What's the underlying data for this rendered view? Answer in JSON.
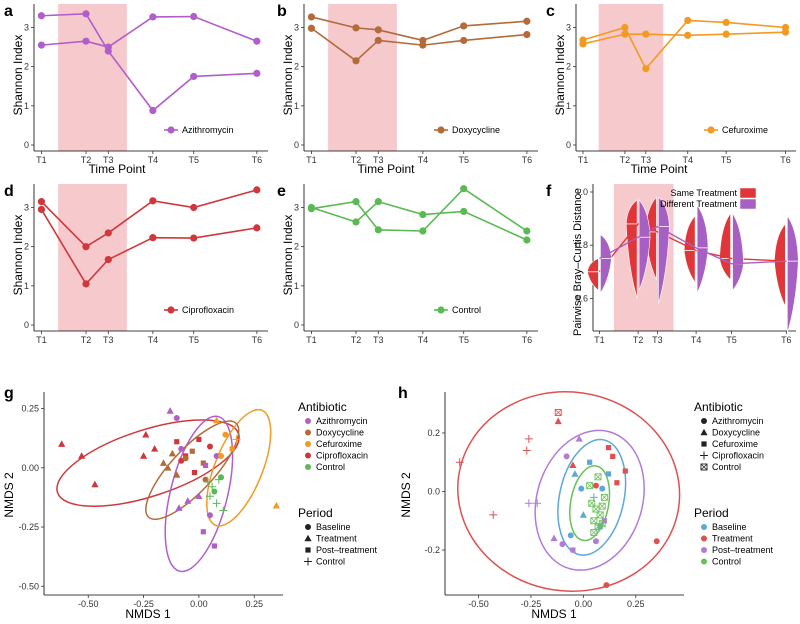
{
  "figure": {
    "panel_labels": [
      "a",
      "b",
      "c",
      "d",
      "e",
      "f",
      "g",
      "h"
    ],
    "timepoint_xlabel": "Time Point",
    "shannon_ylabel": "Shannon Index",
    "braycurtis_ylabel": "Pairwise Bray–Curtis Distance",
    "nmds_xlabel": "NMDS 1",
    "nmds_ylabel": "NMDS 2",
    "antibiotic_legend_title": "Antibiotic",
    "period_legend_title": "Period",
    "antibiotics": [
      "Azithromycin",
      "Doxycycline",
      "Cefuroxime",
      "Ciprofloxacin",
      "Control"
    ],
    "periods_g": [
      "Baseline",
      "Treatment",
      "Post–treatment",
      "Control"
    ],
    "periods_h": [
      "Baseline",
      "Treatment",
      "Post–treatment",
      "Control"
    ],
    "violin_legend": [
      "Same Treatment",
      "Different Treatment"
    ]
  },
  "colors": {
    "Azithromycin": "#b05fc9",
    "Doxycycline": "#b36b3b",
    "Cefuroxime": "#f29a22",
    "Ciprofloxacin": "#d0373b",
    "Control": "#5ab953",
    "treatment_shade": "#f6c9cc",
    "same_treatment": "#e0363a",
    "different_treatment": "#a65fc2",
    "baseline_h": "#5aa9d6",
    "treatment_h": "#e05050",
    "posttreatment_h": "#b27bd9",
    "control_h": "#6bbf5a"
  },
  "chart_data": [
    {
      "panel": "a",
      "type": "line",
      "legend": "Azithromycin",
      "categories": [
        "T1",
        "T2",
        "T3",
        "T4",
        "T5",
        "T6"
      ],
      "x": [
        1,
        2.2,
        2.8,
        4,
        5.1,
        6.8
      ],
      "xlim": [
        0.8,
        7.1
      ],
      "ylim": [
        0,
        3.6
      ],
      "yticks": [
        0,
        1,
        2,
        3
      ],
      "shaded_region": [
        1.45,
        3.3
      ],
      "series": [
        {
          "name": "line1",
          "values": [
            3.3,
            3.35,
            2.4,
            0.88,
            1.75,
            1.83
          ]
        },
        {
          "name": "line2",
          "values": [
            2.55,
            2.65,
            2.5,
            3.27,
            3.28,
            2.65
          ]
        }
      ]
    },
    {
      "panel": "b",
      "type": "line",
      "legend": "Doxycycline",
      "categories": [
        "T1",
        "T2",
        "T3",
        "T4",
        "T5",
        "T6"
      ],
      "x": [
        1,
        2.2,
        2.8,
        4,
        5.1,
        6.8
      ],
      "xlim": [
        0.8,
        7.1
      ],
      "ylim": [
        0,
        3.6
      ],
      "yticks": [
        0,
        1,
        2,
        3
      ],
      "shaded_region": [
        1.45,
        3.3
      ],
      "series": [
        {
          "name": "line1",
          "values": [
            3.27,
            2.99,
            2.94,
            2.67,
            3.04,
            3.16
          ]
        },
        {
          "name": "line2",
          "values": [
            2.98,
            2.15,
            2.67,
            2.55,
            2.67,
            2.82
          ]
        }
      ]
    },
    {
      "panel": "c",
      "type": "line",
      "legend": "Cefuroxime",
      "categories": [
        "T1",
        "T2",
        "T3",
        "T4",
        "T5",
        "T6"
      ],
      "x": [
        1,
        2.2,
        2.8,
        4,
        5.1,
        6.8
      ],
      "xlim": [
        0.8,
        7.1
      ],
      "ylim": [
        0,
        3.6
      ],
      "yticks": [
        0,
        1,
        2,
        3
      ],
      "shaded_region": [
        1.45,
        3.3
      ],
      "series": [
        {
          "name": "line1",
          "values": [
            2.68,
            3.0,
            1.95,
            3.18,
            3.13,
            3.0
          ]
        },
        {
          "name": "line2",
          "values": [
            2.58,
            2.83,
            2.83,
            2.8,
            2.83,
            2.88
          ]
        }
      ]
    },
    {
      "panel": "d",
      "type": "line",
      "legend": "Ciprofloxacin",
      "categories": [
        "T1",
        "T2",
        "T3",
        "T4",
        "T5",
        "T6"
      ],
      "x": [
        1,
        2.2,
        2.8,
        4,
        5.1,
        6.8
      ],
      "xlim": [
        0.8,
        7.1
      ],
      "ylim": [
        0,
        3.6
      ],
      "yticks": [
        0,
        1,
        2,
        3
      ],
      "shaded_region": [
        1.45,
        3.3
      ],
      "series": [
        {
          "name": "line1",
          "values": [
            3.15,
            2.0,
            2.35,
            3.17,
            3.0,
            3.45
          ]
        },
        {
          "name": "line2",
          "values": [
            2.95,
            1.05,
            1.67,
            2.23,
            2.22,
            2.48
          ]
        }
      ]
    },
    {
      "panel": "e",
      "type": "line",
      "legend": "Control",
      "categories": [
        "T1",
        "T2",
        "T3",
        "T4",
        "T5",
        "T6"
      ],
      "x": [
        1,
        2.2,
        2.8,
        4,
        5.1,
        6.8
      ],
      "xlim": [
        0.8,
        7.1
      ],
      "ylim": [
        0,
        3.6
      ],
      "yticks": [
        0,
        1,
        2,
        3
      ],
      "shaded_region": null,
      "series": [
        {
          "name": "line1",
          "values": [
            2.97,
            3.15,
            2.43,
            2.4,
            3.48,
            2.4
          ]
        },
        {
          "name": "line2",
          "values": [
            3.0,
            2.63,
            3.15,
            2.82,
            2.9,
            2.17
          ]
        }
      ]
    },
    {
      "panel": "f",
      "type": "violin",
      "categories": [
        "T1",
        "T2",
        "T3",
        "T4",
        "T5",
        "T6"
      ],
      "x": [
        1,
        2.2,
        2.8,
        4,
        5.1,
        6.8
      ],
      "xlim": [
        0.8,
        7.1
      ],
      "ylim": [
        0.5,
        1.03
      ],
      "yticks": [
        0.6,
        0.8,
        1.0
      ],
      "shaded_region": [
        1.45,
        3.3
      ],
      "series": [
        {
          "name": "Same Treatment",
          "medians": [
            0.7,
            0.88,
            0.85,
            0.78,
            0.75,
            0.74
          ],
          "lo": [
            0.63,
            0.6,
            0.67,
            0.66,
            0.67,
            0.57
          ],
          "hi": [
            0.75,
            0.97,
            0.98,
            0.91,
            0.92,
            0.88
          ]
        },
        {
          "name": "Different Treatment",
          "medians": [
            0.75,
            0.83,
            0.87,
            0.79,
            0.73,
            0.74
          ],
          "lo": [
            0.62,
            0.63,
            0.58,
            0.62,
            0.63,
            0.47
          ],
          "hi": [
            0.84,
            0.97,
            0.98,
            0.95,
            0.92,
            0.91
          ]
        }
      ]
    },
    {
      "panel": "g",
      "type": "scatter",
      "xlim": [
        -0.7,
        0.38
      ],
      "ylim": [
        -0.52,
        0.32
      ],
      "xticks": [
        -0.5,
        -0.25,
        0.0,
        0.25
      ],
      "yticks": [
        -0.5,
        -0.25,
        0.0,
        0.25
      ],
      "xtick_labels": [
        "-0.50",
        "-0.25",
        "0.00",
        "0.25"
      ],
      "ytick_labels": [
        "-0.50",
        "-0.25",
        "0.00",
        "0.25"
      ],
      "ellipses": [
        {
          "group": "Ciprofloxacin",
          "cx": -0.23,
          "cy": 0.02,
          "rx": 0.43,
          "ry": 0.14,
          "angle": 18
        },
        {
          "group": "Azithromycin",
          "cx": 0.0,
          "cy": -0.11,
          "rx": 0.36,
          "ry": 0.12,
          "angle": 76
        },
        {
          "group": "Cefuroxime",
          "cx": 0.18,
          "cy": 0.0,
          "rx": 0.28,
          "ry": 0.1,
          "angle": 68
        },
        {
          "group": "Doxycycline",
          "cx": -0.03,
          "cy": -0.01,
          "rx": 0.29,
          "ry": 0.09,
          "angle": 47
        }
      ],
      "points": [
        [
          -0.62,
          0.1,
          "Ciprofloxacin",
          "t"
        ],
        [
          -0.53,
          0.05,
          "Ciprofloxacin",
          "t"
        ],
        [
          -0.47,
          -0.07,
          "Ciprofloxacin",
          "t"
        ],
        [
          -0.25,
          0.05,
          "Ciprofloxacin",
          "t"
        ],
        [
          -0.24,
          0.14,
          "Ciprofloxacin",
          "t"
        ],
        [
          -0.2,
          0.08,
          "Ciprofloxacin",
          "t"
        ],
        [
          -0.1,
          0.11,
          "Ciprofloxacin",
          "s"
        ],
        [
          -0.06,
          0.05,
          "Ciprofloxacin",
          "s"
        ],
        [
          0.0,
          0.12,
          "Ciprofloxacin",
          "s"
        ],
        [
          -0.02,
          -0.02,
          "Ciprofloxacin",
          "s"
        ],
        [
          0.05,
          0.09,
          "Ciprofloxacin",
          "c"
        ],
        [
          -0.08,
          0.03,
          "Ciprofloxacin",
          "c"
        ],
        [
          -0.16,
          0.02,
          "Doxycycline",
          "t"
        ],
        [
          -0.14,
          0.0,
          "Doxycycline",
          "t"
        ],
        [
          -0.1,
          -0.03,
          "Doxycycline",
          "t"
        ],
        [
          -0.06,
          0.04,
          "Doxycycline",
          "c"
        ],
        [
          -0.03,
          0.07,
          "Doxycycline",
          "s"
        ],
        [
          0.02,
          0.02,
          "Doxycycline",
          "s"
        ],
        [
          0.03,
          -0.05,
          "Doxycycline",
          "c"
        ],
        [
          -0.12,
          0.06,
          "Doxycycline",
          "t"
        ],
        [
          -0.13,
          0.24,
          "Azithromycin",
          "t"
        ],
        [
          -0.1,
          0.21,
          "Azithromycin",
          "c"
        ],
        [
          -0.08,
          0.08,
          "Azithromycin",
          "c"
        ],
        [
          -0.05,
          -0.14,
          "Azithromycin",
          "t"
        ],
        [
          0.0,
          -0.12,
          "Azithromycin",
          "t"
        ],
        [
          -0.09,
          -0.17,
          "Azithromycin",
          "t"
        ],
        [
          0.02,
          -0.27,
          "Azithromycin",
          "s"
        ],
        [
          0.07,
          -0.33,
          "Azithromycin",
          "s"
        ],
        [
          0.05,
          -0.2,
          "Azithromycin",
          "c"
        ],
        [
          0.08,
          0.05,
          "Azithromycin",
          "c"
        ],
        [
          0.03,
          0.01,
          "Azithromycin",
          "s"
        ],
        [
          0.08,
          0.2,
          "Cefuroxime",
          "t"
        ],
        [
          0.12,
          0.14,
          "Cefuroxime",
          "c"
        ],
        [
          0.15,
          0.08,
          "Cefuroxime",
          "s"
        ],
        [
          0.1,
          0.05,
          "Cefuroxime",
          "c"
        ],
        [
          0.17,
          0.12,
          "Cefuroxime",
          "p"
        ],
        [
          0.35,
          -0.16,
          "Cefuroxime",
          "t"
        ],
        [
          0.09,
          -0.05,
          "Control",
          "p"
        ],
        [
          0.06,
          -0.08,
          "Control",
          "p"
        ],
        [
          0.05,
          -0.12,
          "Control",
          "p"
        ],
        [
          0.08,
          -0.15,
          "Control",
          "p"
        ],
        [
          0.11,
          -0.18,
          "Control",
          "p"
        ],
        [
          0.07,
          -0.1,
          "Control",
          "c"
        ],
        [
          0.1,
          -0.04,
          "Control",
          "c"
        ],
        [
          0.04,
          -0.06,
          "Control",
          "p"
        ]
      ]
    },
    {
      "panel": "h",
      "type": "scatter",
      "xlim": [
        -0.66,
        0.48
      ],
      "ylim": [
        -0.34,
        0.34
      ],
      "xticks": [
        -0.5,
        -0.25,
        0.0,
        0.25
      ],
      "yticks": [
        -0.2,
        0.0,
        0.2
      ],
      "xtick_labels": [
        "-0.50",
        "-0.25",
        "0.00",
        "0.25"
      ],
      "ytick_labels": [
        "-0.2",
        "0.0",
        "0.2"
      ],
      "ellipses": [
        {
          "group": "Treatment",
          "cx": -0.07,
          "cy": 0.0,
          "rx": 0.53,
          "ry": 0.34,
          "angle": -8
        },
        {
          "group": "Post–treatment",
          "cx": 0.03,
          "cy": -0.03,
          "rx": 0.34,
          "ry": 0.18,
          "angle": 73
        },
        {
          "group": "Baseline",
          "cx": 0.04,
          "cy": -0.02,
          "rx": 0.28,
          "ry": 0.11,
          "angle": 78
        },
        {
          "group": "Control",
          "cx": 0.03,
          "cy": -0.04,
          "rx": 0.18,
          "ry": 0.065,
          "angle": 80
        }
      ],
      "points": [
        [
          -0.59,
          0.1,
          "Treatment",
          "p"
        ],
        [
          -0.43,
          -0.08,
          "Treatment",
          "p"
        ],
        [
          -0.26,
          0.18,
          "Treatment",
          "p"
        ],
        [
          -0.27,
          0.14,
          "Treatment",
          "p"
        ],
        [
          -0.12,
          0.24,
          "Treatment",
          "t"
        ],
        [
          -0.12,
          0.27,
          "Treatment",
          "x"
        ],
        [
          0.12,
          0.15,
          "Treatment",
          "s"
        ],
        [
          0.14,
          0.12,
          "Treatment",
          "s"
        ],
        [
          0.2,
          0.07,
          "Treatment",
          "s"
        ],
        [
          -0.05,
          0.09,
          "Treatment",
          "t"
        ],
        [
          0.35,
          -0.17,
          "Treatment",
          "c"
        ],
        [
          0.11,
          -0.32,
          "Treatment",
          "c"
        ],
        [
          0.06,
          0.02,
          "Treatment",
          "c"
        ],
        [
          0.16,
          0.03,
          "Treatment",
          "s"
        ],
        [
          -0.04,
          0.06,
          "Baseline",
          "t"
        ],
        [
          -0.01,
          0.01,
          "Baseline",
          "c"
        ],
        [
          0.03,
          0.1,
          "Baseline",
          "s"
        ],
        [
          0.05,
          -0.02,
          "Baseline",
          "p"
        ],
        [
          0.09,
          0.01,
          "Baseline",
          "c"
        ],
        [
          0.0,
          -0.08,
          "Baseline",
          "t"
        ],
        [
          0.08,
          -0.12,
          "Baseline",
          "s"
        ],
        [
          -0.06,
          -0.15,
          "Baseline",
          "c"
        ],
        [
          0.12,
          0.06,
          "Baseline",
          "s"
        ],
        [
          -0.26,
          -0.04,
          "Post–treatment",
          "p"
        ],
        [
          -0.22,
          -0.04,
          "Post–treatment",
          "p"
        ],
        [
          -0.14,
          -0.16,
          "Post–treatment",
          "t"
        ],
        [
          -0.1,
          -0.18,
          "Post–treatment",
          "c"
        ],
        [
          -0.08,
          0.12,
          "Post–treatment",
          "c"
        ],
        [
          -0.02,
          0.18,
          "Post–treatment",
          "t"
        ],
        [
          0.1,
          -0.1,
          "Post–treatment",
          "s"
        ],
        [
          -0.05,
          -0.2,
          "Post–treatment",
          "s"
        ],
        [
          0.06,
          -0.17,
          "Post–treatment",
          "c"
        ],
        [
          0.04,
          -0.04,
          "Control",
          "x"
        ],
        [
          0.06,
          -0.06,
          "Control",
          "x"
        ],
        [
          0.08,
          -0.08,
          "Control",
          "x"
        ],
        [
          0.05,
          -0.1,
          "Control",
          "x"
        ],
        [
          0.07,
          -0.12,
          "Control",
          "x"
        ],
        [
          0.09,
          -0.05,
          "Control",
          "x"
        ],
        [
          0.1,
          -0.02,
          "Control",
          "x"
        ],
        [
          0.03,
          0.02,
          "Control",
          "x"
        ],
        [
          0.07,
          0.05,
          "Control",
          "x"
        ],
        [
          0.05,
          -0.14,
          "Control",
          "x"
        ],
        [
          0.09,
          -0.11,
          "Control",
          "x"
        ]
      ]
    }
  ]
}
